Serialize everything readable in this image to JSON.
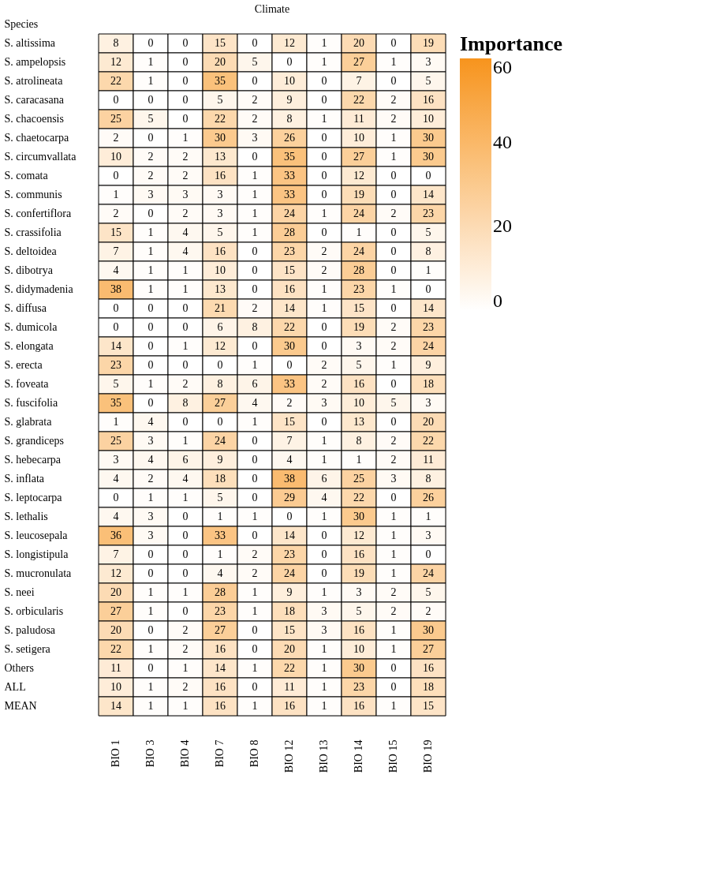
{
  "chart_data": {
    "type": "heatmap",
    "title": "Climate",
    "ylabel": "Species",
    "clabel": "Importance",
    "data_labels": true,
    "categories": [
      "BIO 1",
      "BIO 3",
      "BIO 4",
      "BIO 7",
      "BIO 8",
      "BIO 12",
      "BIO 13",
      "BIO 14",
      "BIO 15",
      "BIO 19"
    ],
    "y_categories": [
      "S. altissima",
      "S. ampelopsis",
      "S. atrolineata",
      "S. caracasana",
      "S. chacoensis",
      "S. chaetocarpa",
      "S. circumvallata",
      "S. comata",
      "S. communis",
      "S. confertiflora",
      "S. crassifolia",
      "S. deltoidea",
      "S. dibotrya",
      "S. didymadenia",
      "S. diffusa",
      "S. dumicola",
      "S. elongata",
      "S. erecta",
      "S. foveata",
      "S. fuscifolia",
      "S. glabrata",
      "S. grandiceps",
      "S. hebecarpa",
      "S. inflata",
      "S. leptocarpa",
      "S. lethalis",
      "S. leucosepala",
      "S. longistipula",
      "S. mucronulata",
      "S. neei",
      "S. orbicularis",
      "S. paludosa",
      "S. setigera",
      "Others",
      "ALL",
      "MEAN"
    ],
    "cells": [
      [
        8,
        0,
        0,
        15,
        0,
        12,
        1,
        20,
        0,
        19
      ],
      [
        12,
        1,
        0,
        20,
        5,
        0,
        1,
        27,
        1,
        3
      ],
      [
        22,
        1,
        0,
        35,
        0,
        10,
        0,
        7,
        0,
        5
      ],
      [
        0,
        0,
        0,
        5,
        2,
        9,
        0,
        22,
        2,
        16
      ],
      [
        25,
        5,
        0,
        22,
        2,
        8,
        1,
        11,
        2,
        10
      ],
      [
        2,
        0,
        1,
        30,
        3,
        26,
        0,
        10,
        1,
        30
      ],
      [
        10,
        2,
        2,
        13,
        0,
        35,
        0,
        27,
        1,
        30
      ],
      [
        0,
        2,
        2,
        16,
        1,
        33,
        0,
        12,
        0,
        0
      ],
      [
        1,
        3,
        3,
        3,
        1,
        33,
        0,
        19,
        0,
        14
      ],
      [
        2,
        0,
        2,
        3,
        1,
        24,
        1,
        24,
        2,
        23
      ],
      [
        15,
        1,
        4,
        5,
        1,
        28,
        0,
        1,
        0,
        5
      ],
      [
        7,
        1,
        4,
        16,
        0,
        23,
        2,
        24,
        0,
        8
      ],
      [
        4,
        1,
        1,
        10,
        0,
        15,
        2,
        28,
        0,
        1
      ],
      [
        38,
        1,
        1,
        13,
        0,
        16,
        1,
        23,
        1,
        0
      ],
      [
        0,
        0,
        0,
        21,
        2,
        14,
        1,
        15,
        0,
        14
      ],
      [
        0,
        0,
        0,
        6,
        8,
        22,
        0,
        19,
        2,
        23
      ],
      [
        14,
        0,
        1,
        12,
        0,
        30,
        0,
        3,
        2,
        24
      ],
      [
        23,
        0,
        0,
        0,
        1,
        0,
        2,
        5,
        1,
        9
      ],
      [
        5,
        1,
        2,
        8,
        6,
        33,
        2,
        16,
        0,
        18
      ],
      [
        35,
        0,
        8,
        27,
        4,
        2,
        3,
        10,
        5,
        3
      ],
      [
        1,
        4,
        0,
        0,
        1,
        15,
        0,
        13,
        0,
        20
      ],
      [
        25,
        3,
        1,
        24,
        0,
        7,
        1,
        8,
        2,
        22
      ],
      [
        3,
        4,
        6,
        9,
        0,
        4,
        1,
        1,
        2,
        11
      ],
      [
        4,
        2,
        4,
        18,
        0,
        38,
        6,
        25,
        3,
        8
      ],
      [
        0,
        1,
        1,
        5,
        0,
        29,
        4,
        22,
        0,
        26
      ],
      [
        4,
        3,
        0,
        1,
        1,
        0,
        1,
        30,
        1,
        1
      ],
      [
        36,
        3,
        0,
        33,
        0,
        14,
        0,
        12,
        1,
        3
      ],
      [
        7,
        0,
        0,
        1,
        2,
        23,
        0,
        16,
        1,
        0
      ],
      [
        12,
        0,
        0,
        4,
        2,
        24,
        0,
        19,
        1,
        24
      ],
      [
        20,
        1,
        1,
        28,
        1,
        9,
        1,
        3,
        2,
        5
      ],
      [
        27,
        1,
        0,
        23,
        1,
        18,
        3,
        5,
        2,
        2
      ],
      [
        20,
        0,
        2,
        27,
        0,
        15,
        3,
        16,
        1,
        30
      ],
      [
        22,
        1,
        2,
        16,
        0,
        20,
        1,
        10,
        1,
        27
      ],
      [
        11,
        0,
        1,
        14,
        1,
        22,
        1,
        30,
        0,
        16
      ],
      [
        10,
        1,
        2,
        16,
        0,
        11,
        1,
        23,
        0,
        18
      ],
      [
        14,
        1,
        1,
        16,
        1,
        16,
        1,
        16,
        1,
        15
      ]
    ],
    "colors": [
      "#ffffff",
      "#f7941d"
    ],
    "clim": [
      0,
      60
    ],
    "cticks": [
      0,
      20,
      40,
      60
    ]
  }
}
